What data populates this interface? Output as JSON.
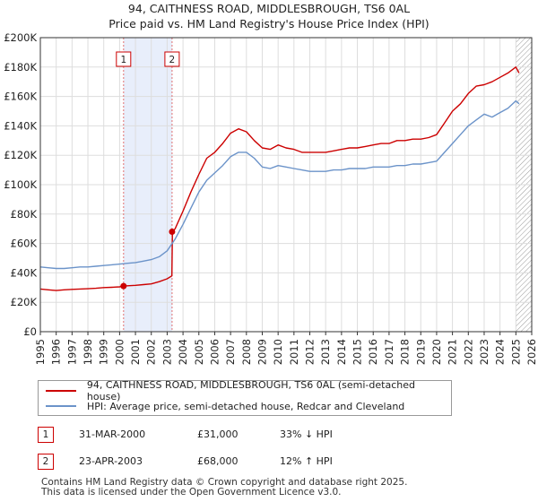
{
  "title": "94, CAITHNESS ROAD, MIDDLESBROUGH, TS6 0AL",
  "subtitle": "Price paid vs. HM Land Registry's House Price Index (HPI)",
  "chart_data": {
    "type": "line",
    "title": "94, CAITHNESS ROAD, MIDDLESBROUGH, TS6 0AL",
    "subtitle": "Price paid vs. HM Land Registry's House Price Index (HPI)",
    "xlim": [
      1995,
      2026
    ],
    "ylim": [
      0,
      200000
    ],
    "x_ticks": [
      "1995",
      "1996",
      "1997",
      "1998",
      "1999",
      "2000",
      "2001",
      "2002",
      "2003",
      "2004",
      "2005",
      "2006",
      "2007",
      "2008",
      "2009",
      "2010",
      "2011",
      "2012",
      "2013",
      "2014",
      "2015",
      "2016",
      "2017",
      "2018",
      "2019",
      "2020",
      "2021",
      "2022",
      "2023",
      "2024",
      "2025",
      "2026"
    ],
    "y_ticks": [
      {
        "value": 0,
        "label": "£0"
      },
      {
        "value": 20000,
        "label": "£20K"
      },
      {
        "value": 40000,
        "label": "£40K"
      },
      {
        "value": 60000,
        "label": "£60K"
      },
      {
        "value": 80000,
        "label": "£80K"
      },
      {
        "value": 100000,
        "label": "£100K"
      },
      {
        "value": 120000,
        "label": "£120K"
      },
      {
        "value": 140000,
        "label": "£140K"
      },
      {
        "value": 160000,
        "label": "£160K"
      },
      {
        "value": 180000,
        "label": "£180K"
      },
      {
        "value": 200000,
        "label": "£200K"
      }
    ],
    "grid": true,
    "series": [
      {
        "name": "94, CAITHNESS ROAD, MIDDLESBROUGH, TS6 0AL (semi-detached house)",
        "color": "#cc0000",
        "x": [
          1995.0,
          1995.5,
          1996.0,
          1996.5,
          1997.0,
          1997.5,
          1998.0,
          1998.5,
          1999.0,
          1999.5,
          2000.0,
          2000.25,
          2000.5,
          2001.0,
          2001.5,
          2002.0,
          2002.5,
          2003.0,
          2003.3,
          2003.33,
          2003.5,
          2004.0,
          2004.5,
          2005.0,
          2005.5,
          2006.0,
          2006.5,
          2007.0,
          2007.5,
          2008.0,
          2008.5,
          2009.0,
          2009.5,
          2010.0,
          2010.5,
          2011.0,
          2011.5,
          2012.0,
          2012.5,
          2013.0,
          2013.5,
          2014.0,
          2014.5,
          2015.0,
          2015.5,
          2016.0,
          2016.5,
          2017.0,
          2017.5,
          2018.0,
          2018.5,
          2019.0,
          2019.5,
          2020.0,
          2020.5,
          2021.0,
          2021.5,
          2022.0,
          2022.5,
          2023.0,
          2023.5,
          2024.0,
          2024.5,
          2025.0,
          2025.2
        ],
        "values": [
          29000,
          28500,
          28000,
          28500,
          28800,
          29000,
          29200,
          29500,
          30000,
          30200,
          30500,
          31000,
          31200,
          31500,
          32000,
          32500,
          34000,
          36000,
          38000,
          68000,
          70000,
          82000,
          95000,
          107000,
          118000,
          122000,
          128000,
          135000,
          138000,
          136000,
          130000,
          125000,
          124000,
          127000,
          125000,
          124000,
          122000,
          122000,
          122000,
          122000,
          123000,
          124000,
          125000,
          125000,
          126000,
          127000,
          128000,
          128000,
          130000,
          130000,
          131000,
          131000,
          132000,
          134000,
          142000,
          150000,
          155000,
          162000,
          167000,
          168000,
          170000,
          173000,
          176000,
          180000,
          176000
        ]
      },
      {
        "name": "HPI: Average price, semi-detached house, Redcar and Cleveland",
        "color": "#6b93c9",
        "x": [
          1995.0,
          1995.5,
          1996.0,
          1996.5,
          1997.0,
          1997.5,
          1998.0,
          1998.5,
          1999.0,
          1999.5,
          2000.0,
          2000.5,
          2001.0,
          2001.5,
          2002.0,
          2002.5,
          2003.0,
          2003.5,
          2004.0,
          2004.5,
          2005.0,
          2005.5,
          2006.0,
          2006.5,
          2007.0,
          2007.5,
          2008.0,
          2008.5,
          2009.0,
          2009.5,
          2010.0,
          2010.5,
          2011.0,
          2011.5,
          2012.0,
          2012.5,
          2013.0,
          2013.5,
          2014.0,
          2014.5,
          2015.0,
          2015.5,
          2016.0,
          2016.5,
          2017.0,
          2017.5,
          2018.0,
          2018.5,
          2019.0,
          2019.5,
          2020.0,
          2020.5,
          2021.0,
          2021.5,
          2022.0,
          2022.5,
          2023.0,
          2023.5,
          2024.0,
          2024.5,
          2025.0,
          2025.2
        ],
        "values": [
          44000,
          43500,
          43000,
          43000,
          43500,
          44000,
          44000,
          44500,
          45000,
          45500,
          46000,
          46500,
          47000,
          48000,
          49000,
          51000,
          55000,
          63000,
          73000,
          84000,
          95000,
          103000,
          108000,
          113000,
          119000,
          122000,
          122000,
          118000,
          112000,
          111000,
          113000,
          112000,
          111000,
          110000,
          109000,
          109000,
          109000,
          110000,
          110000,
          111000,
          111000,
          111000,
          112000,
          112000,
          112000,
          113000,
          113000,
          114000,
          114000,
          115000,
          116000,
          122000,
          128000,
          134000,
          140000,
          144000,
          148000,
          146000,
          149000,
          152000,
          157000,
          155000
        ]
      }
    ],
    "transactions": [
      {
        "label": "1",
        "x": 2000.25,
        "value": 31000,
        "date": "31-MAR-2000",
        "price": "£31,000",
        "hpi": "33% ↓ HPI"
      },
      {
        "label": "2",
        "x": 2003.31,
        "value": 68000,
        "date": "23-APR-2003",
        "price": "£68,000",
        "hpi": "12% ↑ HPI"
      }
    ],
    "shaded_range": [
      2000.25,
      2003.31
    ],
    "hatched_from": 2025.0
  },
  "legend": {
    "property": "94, CAITHNESS ROAD, MIDDLESBROUGH, TS6 0AL (semi-detached house)",
    "hpi": "HPI: Average price, semi-detached house, Redcar and Cleveland"
  },
  "colors": {
    "property": "#cc0000",
    "hpi": "#6b93c9",
    "shade": "#e8eefb",
    "grid": "#dddddd"
  },
  "footer": {
    "line1": "Contains HM Land Registry data © Crown copyright and database right 2025.",
    "line2": "This data is licensed under the Open Government Licence v3.0."
  }
}
